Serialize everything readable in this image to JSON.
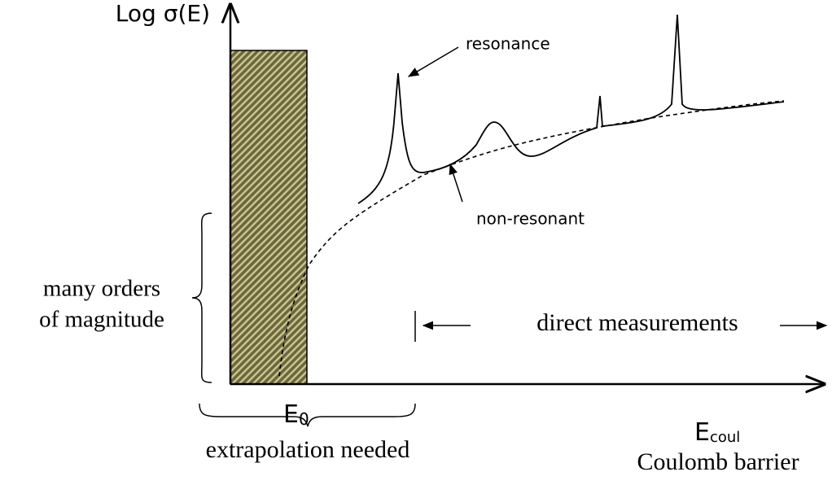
{
  "y_axis_label": "Log σ(E)",
  "annotations": {
    "resonance": "resonance",
    "non_resonant": "non-resonant",
    "direct": "direct measurements"
  },
  "magnitude": [
    "many orders",
    "of magnitude"
  ],
  "e0": {
    "base": "E",
    "sub": "0"
  },
  "extrapolation": "extrapolation needed",
  "ecoul": {
    "base": "E",
    "sub": "coul"
  },
  "coulomb": "Coulomb barrier"
}
